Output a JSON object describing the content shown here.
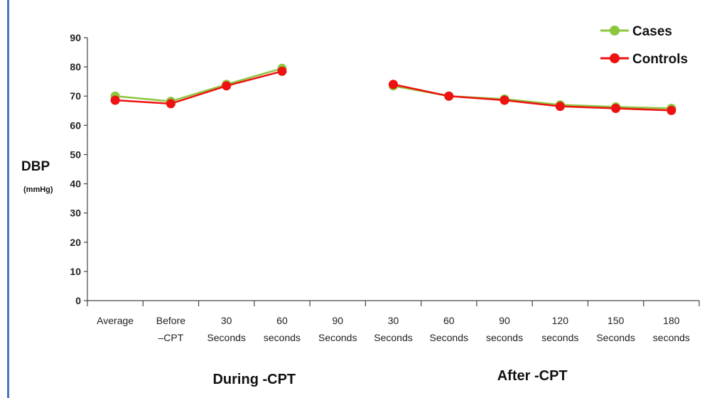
{
  "chart_data": {
    "type": "line",
    "categories": [
      [
        "Average"
      ],
      [
        "Before",
        "–CPT"
      ],
      [
        "30",
        "Seconds"
      ],
      [
        "60",
        "seconds"
      ],
      [
        "90",
        "Seconds"
      ],
      [
        "30",
        "Seconds"
      ],
      [
        "60",
        "Seconds"
      ],
      [
        "90",
        "seconds"
      ],
      [
        "120",
        "seconds"
      ],
      [
        "150",
        "Seconds"
      ],
      [
        "180",
        "seconds"
      ]
    ],
    "group_labels": [
      {
        "label": "During -CPT",
        "from_index": 1,
        "to_index": 4
      },
      {
        "label": "After -CPT",
        "from_index": 5,
        "to_index": 10
      }
    ],
    "ylabel": "DBP",
    "ylabel_unit": "(mmHg)",
    "ylim": [
      0,
      90
    ],
    "yticks": [
      0,
      10,
      20,
      30,
      40,
      50,
      60,
      70,
      80,
      90
    ],
    "grid": false,
    "legend_position": "top-right",
    "series": [
      {
        "name": "Cases",
        "color": "#8dc63f",
        "values": [
          70,
          68.2,
          74,
          79.5,
          null,
          73.5,
          70,
          69,
          67,
          66.3,
          65.8
        ]
      },
      {
        "name": "Controls",
        "color": "#ee1111",
        "values": [
          68.6,
          67.4,
          73.5,
          78.5,
          null,
          74,
          70,
          68.6,
          66.5,
          65.8,
          65.1
        ]
      }
    ]
  }
}
